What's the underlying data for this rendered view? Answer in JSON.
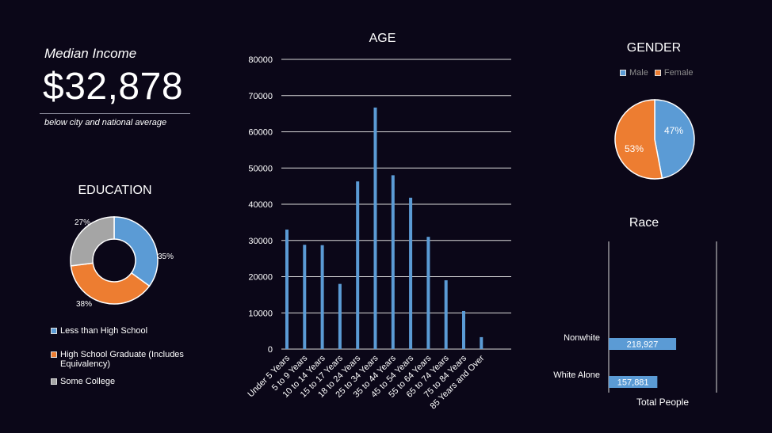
{
  "income": {
    "label": "Median Income",
    "value": "$32,878",
    "note": "below city and national average"
  },
  "colors": {
    "blue": "#5b9bd5",
    "orange": "#ed7d31",
    "gray": "#a5a5a5",
    "background": "#0b0718"
  },
  "chart_data": [
    {
      "type": "bar",
      "title": "AGE",
      "categories": [
        "Under 5 Years",
        "5 to 9 Years",
        "10 to 14 Years",
        "15 to 17 Years",
        "18 to 24 Years",
        "25 to 34 Years",
        "35 to 44 Years",
        "45 to 54 Years",
        "55 to 64 Years",
        "65 to 74 Years",
        "75 to 84 Years",
        "85 Years and Over"
      ],
      "values": [
        33000,
        28800,
        28700,
        18000,
        46300,
        66700,
        48000,
        41800,
        31000,
        19000,
        10500,
        3300
      ],
      "ylim": [
        0,
        80000
      ],
      "yticks": [
        "0",
        "10000",
        "20000",
        "30000",
        "40000",
        "50000",
        "60000",
        "70000",
        "80000"
      ],
      "grid": true
    },
    {
      "type": "pie",
      "donut": true,
      "title": "EDUCATION",
      "labels": [
        "Less than High School",
        "High School Graduate (Includes Equivalency)",
        "Some College"
      ],
      "values": [
        35,
        38,
        27
      ],
      "value_labels": [
        "35%",
        "38%",
        "27%"
      ],
      "legend": "bottom"
    },
    {
      "type": "pie",
      "title": "GENDER",
      "labels": [
        "Male",
        "Female"
      ],
      "values": [
        47,
        53
      ],
      "value_labels": [
        "47%",
        "53%"
      ],
      "legend": "top"
    },
    {
      "type": "bar",
      "orientation": "horizontal",
      "title": "Race",
      "categories": [
        "Nonwhite",
        "White Alone"
      ],
      "values": [
        218927,
        157881
      ],
      "value_labels": [
        "218,927",
        "157,881"
      ],
      "xlabel": "Total People"
    }
  ]
}
